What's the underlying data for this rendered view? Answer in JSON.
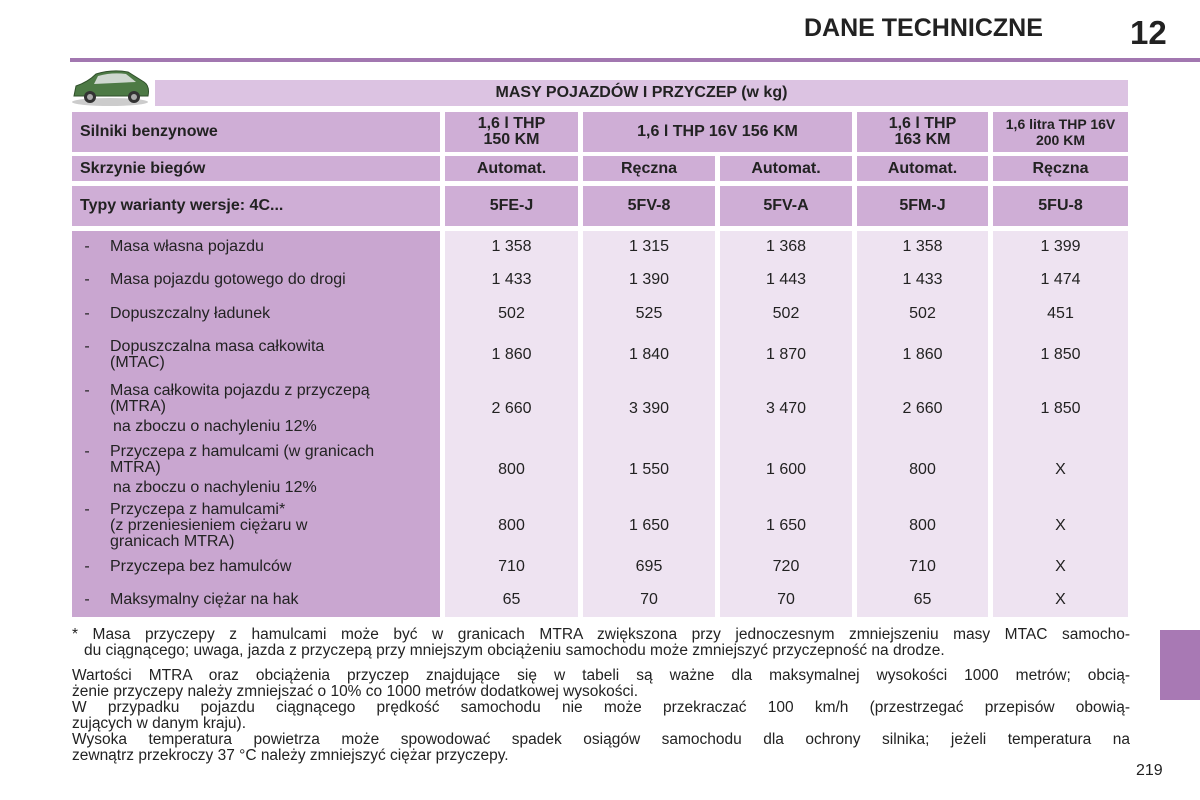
{
  "header": {
    "title": "DANE TECHNICZNE",
    "chapter": "12"
  },
  "table": {
    "title": "MASY POJAZDÓW I PRZYCZEP (w kg)",
    "engines": {
      "label": "Silniki benzynowe",
      "cells": [
        [
          "1,6 l THP",
          "150 KM"
        ],
        [
          "1,6 l THP 16V 156 KM"
        ],
        [
          "1,6 l THP",
          "163 KM"
        ],
        [
          "1,6 litra THP 16V",
          "200 KM"
        ]
      ]
    },
    "gearboxes": {
      "label": "Skrzynie biegów",
      "cells": [
        "Automat.",
        "Ręczna",
        "Automat.",
        "Automat.",
        "Ręczna"
      ]
    },
    "types": {
      "label": "Typy warianty wersje: 4C...",
      "cells": [
        "5FE-J",
        "5FV-8",
        "5FV-A",
        "5FM-J",
        "5FU-8"
      ]
    },
    "rows": [
      {
        "marker": "-",
        "label": [
          "Masa własna pojazdu"
        ],
        "values": [
          "1 358",
          "1 315",
          "1 368",
          "1 358",
          "1 399"
        ]
      },
      {
        "marker": "-",
        "label": [
          "Masa pojazdu gotowego do drogi"
        ],
        "values": [
          "1 433",
          "1 390",
          "1 443",
          "1 433",
          "1 474"
        ]
      },
      {
        "marker": "-",
        "label": [
          "Dopuszczalny ładunek"
        ],
        "values": [
          "502",
          "525",
          "502",
          "502",
          "451"
        ]
      },
      {
        "marker": "-",
        "label": [
          "Dopuszczalna masa całkowita",
          "(MTAC)"
        ],
        "values": [
          "1 860",
          "1 840",
          "1 870",
          "1 860",
          "1 850"
        ]
      },
      {
        "marker": "-",
        "label": [
          "Masa całkowita pojazdu z przyczepą",
          "(MTRA)"
        ],
        "note": "na zboczu o nachyleniu 12%",
        "values": [
          "2 660",
          "3 390",
          "3 470",
          "2 660",
          "1 850"
        ]
      },
      {
        "marker": "-",
        "label": [
          "Przyczepa z hamulcami (w granicach",
          "MTRA)"
        ],
        "note": "na zboczu o nachyleniu 12%",
        "values": [
          "800",
          "1 550",
          "1 600",
          "800",
          "X"
        ]
      },
      {
        "marker": "-",
        "label": [
          "Przyczepa z hamulcami*",
          "(z przeniesieniem ciężaru w",
          "granicach MTRA)"
        ],
        "values": [
          "800",
          "1 650",
          "1 650",
          "800",
          "X"
        ]
      },
      {
        "marker": "-",
        "label": [
          "Przyczepa bez hamulców"
        ],
        "values": [
          "710",
          "695",
          "720",
          "710",
          "X"
        ]
      },
      {
        "marker": "-",
        "label": [
          "Maksymalny ciężar na hak"
        ],
        "values": [
          "65",
          "70",
          "70",
          "65",
          "X"
        ]
      }
    ]
  },
  "notes": [
    "* Masa przyczepy z hamulcami może być w granicach MTRA zwiększona przy jednoczesnym zmniejszeniu masy MTAC samocho-",
    "du ciągnącego; uwaga, jazda z przyczepą przy mniejszym obciążeniu samochodu może zmniejszyć przyczepność na drodze.",
    "Wartości MTRA oraz obciążenia przyczep znajdujące się w tabeli są ważne dla maksymalnej wysokości 1000 metrów; obcią-",
    "żenie przyczepy należy zmniejszać o 10% co 1000 metrów dodatkowej wysokości.",
    "W przypadku pojazdu ciągnącego prędkość samochodu nie może przekraczać 100 km/h (przestrzegać przepisów obowią-",
    "zujących w danym kraju).",
    "Wysoka temperatura powietrza może spowodować spadek osiągów samochodu dla ochrony silnika; jeżeli temperatura na",
    "zewnątrz przekroczy 37 °C należy zmniejszyć ciężar przyczepy."
  ],
  "page_number": "219"
}
